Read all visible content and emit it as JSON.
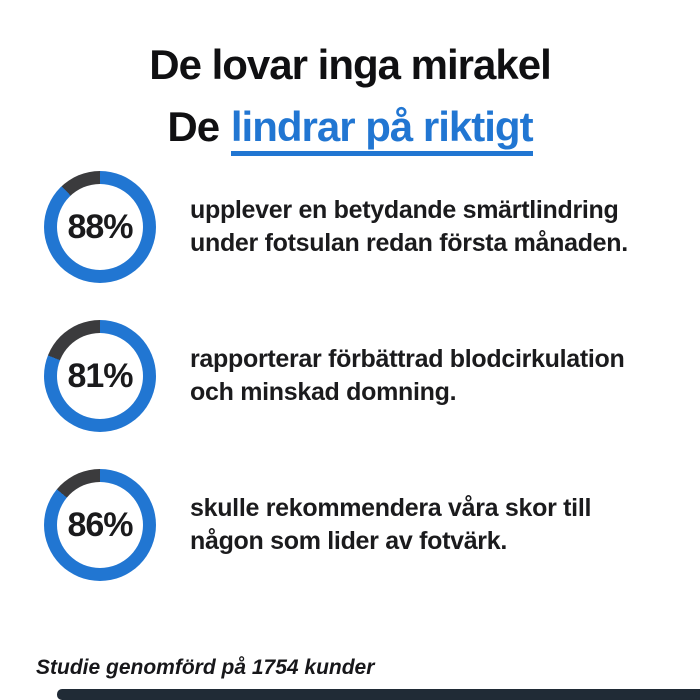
{
  "page": {
    "title_line1": "De lovar inga mirakel",
    "title_line2_prefix": "De",
    "title_line2_link": "lindrar på riktigt"
  },
  "stats": [
    {
      "percent": 88,
      "label": "88%",
      "lines": [
        "upplever en betydande smärtlindring",
        "under fotsulan redan första månaden."
      ]
    },
    {
      "percent": 81,
      "label": "81%",
      "lines": [
        "rapporterar förbättrad blodcirkulation",
        "och minskad domning."
      ]
    },
    {
      "percent": 86,
      "label": "86%",
      "lines": [
        "skulle rekommendera våra skor till",
        "någon som lider av fotvärk."
      ]
    }
  ],
  "footer": {
    "note": "Studie genomförd på 1754 kunder"
  },
  "colors": {
    "accent_blue": "#2176D2",
    "ring_remainder": "#3B3B3D",
    "text_dark": "#161618",
    "bottom_bar": "#202B36",
    "background": "#FFFFFF"
  },
  "chart_data": {
    "type": "pie",
    "variant": "donut_progress_rings",
    "units": "percent",
    "title": "De lovar inga mirakel — De lindrar på riktigt",
    "series": [
      {
        "name": "upplever en betydande smärtlindring under fotsulan redan första månaden.",
        "value": 88,
        "remainder": 12
      },
      {
        "name": "rapporterar förbättrad blodcirkulation och minskad domning.",
        "value": 81,
        "remainder": 19
      },
      {
        "name": "skulle rekommendera våra skor till någon som lider av fotvärk.",
        "value": 86,
        "remainder": 14
      }
    ],
    "annotation": "Studie genomförd på 1754 kunder",
    "sample_size": 1754,
    "fill_color": "#2176D2",
    "remainder_color": "#3B3B3D",
    "ring_start_angle_deg": 0,
    "ring_direction": "clockwise",
    "legend": "none"
  }
}
